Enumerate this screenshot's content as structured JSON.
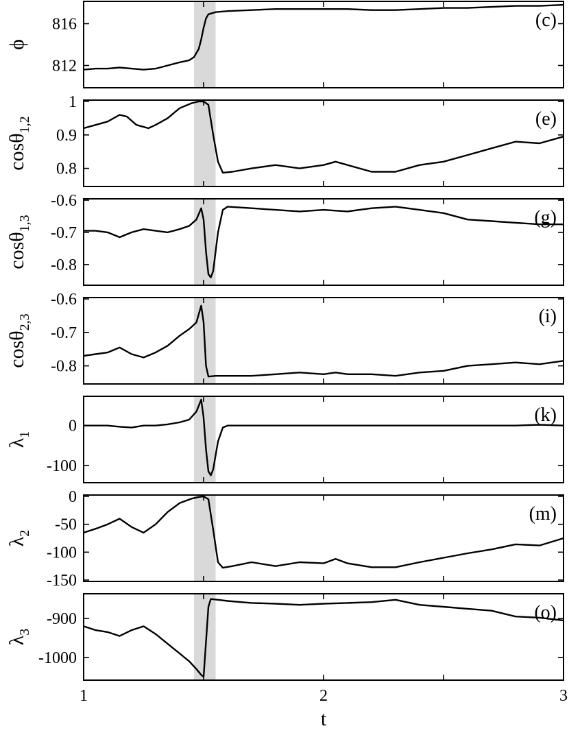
{
  "chart_data": {
    "type": "line",
    "xlabel": "t",
    "xlim": [
      1,
      3
    ],
    "xticks": [
      "1",
      "2",
      "3"
    ],
    "shaded_interval": [
      1.46,
      1.55
    ],
    "panels": [
      {
        "id": "c",
        "tag": "(c)",
        "ylabel": "ϕ",
        "ylabel_sub": "",
        "ylim": [
          810,
          818
        ],
        "yticks": [
          {
            "v": 812,
            "label": "812"
          },
          {
            "v": 816,
            "label": "816"
          }
        ],
        "x": [
          1.0,
          1.05,
          1.1,
          1.15,
          1.2,
          1.25,
          1.3,
          1.35,
          1.4,
          1.44,
          1.46,
          1.48,
          1.49,
          1.5,
          1.51,
          1.52,
          1.55,
          1.6,
          1.7,
          1.8,
          1.9,
          2.0,
          2.1,
          2.2,
          2.3,
          2.4,
          2.5,
          2.6,
          2.7,
          2.8,
          2.9,
          3.0
        ],
        "y": [
          811.6,
          811.7,
          811.7,
          811.8,
          811.7,
          811.6,
          811.7,
          812.0,
          812.3,
          812.5,
          812.8,
          813.6,
          814.5,
          815.6,
          816.5,
          816.9,
          817.1,
          817.2,
          817.3,
          817.4,
          817.4,
          817.4,
          817.4,
          817.3,
          817.3,
          817.4,
          817.5,
          817.5,
          817.6,
          817.7,
          817.7,
          817.8
        ]
      },
      {
        "id": "e",
        "tag": "(e)",
        "ylabel": "cosθ",
        "ylabel_sub": "1,2",
        "ylim": [
          0.75,
          1.0
        ],
        "yticks": [
          {
            "v": 0.8,
            "label": "0.8"
          },
          {
            "v": 0.9,
            "label": "0.9"
          },
          {
            "v": 1.0,
            "label": "1"
          }
        ],
        "x": [
          1.0,
          1.05,
          1.1,
          1.15,
          1.18,
          1.22,
          1.27,
          1.3,
          1.35,
          1.4,
          1.45,
          1.48,
          1.5,
          1.52,
          1.54,
          1.56,
          1.58,
          1.62,
          1.7,
          1.8,
          1.9,
          2.0,
          2.05,
          2.1,
          2.2,
          2.3,
          2.4,
          2.5,
          2.6,
          2.7,
          2.8,
          2.9,
          3.0
        ],
        "y": [
          0.92,
          0.93,
          0.94,
          0.96,
          0.955,
          0.93,
          0.92,
          0.93,
          0.95,
          0.98,
          0.995,
          1.0,
          1.0,
          0.99,
          0.9,
          0.82,
          0.787,
          0.79,
          0.8,
          0.81,
          0.8,
          0.81,
          0.82,
          0.81,
          0.79,
          0.79,
          0.81,
          0.82,
          0.84,
          0.86,
          0.88,
          0.875,
          0.895
        ]
      },
      {
        "id": "g",
        "tag": "(g)",
        "ylabel": "cosθ",
        "ylabel_sub": "1,3",
        "ylim": [
          -0.86,
          -0.6
        ],
        "yticks": [
          {
            "v": -0.8,
            "label": "-0.8"
          },
          {
            "v": -0.7,
            "label": "-0.7"
          },
          {
            "v": -0.6,
            "label": "-0.6"
          }
        ],
        "x": [
          1.0,
          1.05,
          1.1,
          1.15,
          1.2,
          1.25,
          1.3,
          1.35,
          1.4,
          1.44,
          1.47,
          1.49,
          1.5,
          1.51,
          1.52,
          1.53,
          1.54,
          1.56,
          1.58,
          1.6,
          1.7,
          1.8,
          1.9,
          2.0,
          2.1,
          2.2,
          2.3,
          2.4,
          2.5,
          2.6,
          2.7,
          2.8,
          2.9,
          3.0
        ],
        "y": [
          -0.695,
          -0.695,
          -0.7,
          -0.715,
          -0.7,
          -0.69,
          -0.695,
          -0.7,
          -0.69,
          -0.68,
          -0.66,
          -0.625,
          -0.66,
          -0.76,
          -0.83,
          -0.84,
          -0.82,
          -0.7,
          -0.63,
          -0.62,
          -0.625,
          -0.63,
          -0.635,
          -0.63,
          -0.635,
          -0.625,
          -0.62,
          -0.63,
          -0.64,
          -0.66,
          -0.665,
          -0.67,
          -0.675,
          -0.675
        ]
      },
      {
        "id": "i",
        "tag": "(i)",
        "ylabel": "cosθ",
        "ylabel_sub": "2,3",
        "ylim": [
          -0.85,
          -0.6
        ],
        "yticks": [
          {
            "v": -0.8,
            "label": "-0.8"
          },
          {
            "v": -0.7,
            "label": "-0.7"
          },
          {
            "v": -0.6,
            "label": "-0.6"
          }
        ],
        "x": [
          1.0,
          1.05,
          1.1,
          1.15,
          1.2,
          1.25,
          1.3,
          1.35,
          1.4,
          1.44,
          1.47,
          1.49,
          1.5,
          1.51,
          1.52,
          1.55,
          1.6,
          1.7,
          1.8,
          1.9,
          2.0,
          2.05,
          2.1,
          2.2,
          2.3,
          2.4,
          2.5,
          2.6,
          2.7,
          2.8,
          2.9,
          3.0
        ],
        "y": [
          -0.77,
          -0.765,
          -0.76,
          -0.745,
          -0.765,
          -0.775,
          -0.76,
          -0.74,
          -0.71,
          -0.69,
          -0.67,
          -0.62,
          -0.67,
          -0.8,
          -0.832,
          -0.83,
          -0.83,
          -0.83,
          -0.825,
          -0.82,
          -0.825,
          -0.82,
          -0.825,
          -0.825,
          -0.83,
          -0.82,
          -0.815,
          -0.8,
          -0.795,
          -0.79,
          -0.795,
          -0.785
        ]
      },
      {
        "id": "k",
        "tag": "(k)",
        "ylabel": "λ",
        "ylabel_sub": "1",
        "ylim": [
          -140,
          70
        ],
        "yticks": [
          {
            "v": -100,
            "label": "-100"
          },
          {
            "v": 0,
            "label": "0"
          }
        ],
        "x": [
          1.0,
          1.05,
          1.1,
          1.15,
          1.2,
          1.25,
          1.3,
          1.35,
          1.4,
          1.44,
          1.47,
          1.49,
          1.5,
          1.51,
          1.52,
          1.53,
          1.54,
          1.56,
          1.58,
          1.6,
          1.7,
          1.8,
          1.9,
          2.0,
          2.1,
          2.2,
          2.3,
          2.4,
          2.5,
          2.6,
          2.7,
          2.8,
          2.9,
          3.0
        ],
        "y": [
          0,
          0,
          0,
          -3,
          -5,
          0,
          0,
          3,
          8,
          15,
          35,
          65,
          20,
          -60,
          -115,
          -125,
          -110,
          -40,
          -5,
          0,
          0,
          0,
          0,
          0,
          0,
          0,
          0,
          0,
          0,
          0,
          0,
          0,
          2,
          0
        ]
      },
      {
        "id": "m",
        "tag": "(m)",
        "ylabel": "λ",
        "ylabel_sub": "2",
        "ylim": [
          -150,
          0
        ],
        "yticks": [
          {
            "v": -150,
            "label": "-150"
          },
          {
            "v": -100,
            "label": "-100"
          },
          {
            "v": -50,
            "label": "-50"
          },
          {
            "v": 0,
            "label": "0"
          }
        ],
        "x": [
          1.0,
          1.05,
          1.1,
          1.15,
          1.2,
          1.25,
          1.3,
          1.35,
          1.4,
          1.45,
          1.48,
          1.5,
          1.52,
          1.54,
          1.56,
          1.58,
          1.62,
          1.7,
          1.8,
          1.9,
          2.0,
          2.05,
          2.1,
          2.2,
          2.3,
          2.4,
          2.5,
          2.6,
          2.7,
          2.8,
          2.9,
          3.0
        ],
        "y": [
          -65,
          -58,
          -50,
          -40,
          -55,
          -65,
          -50,
          -28,
          -12,
          -4,
          -1,
          0,
          -5,
          -60,
          -118,
          -128,
          -125,
          -118,
          -125,
          -118,
          -120,
          -112,
          -120,
          -127,
          -127,
          -118,
          -110,
          -102,
          -95,
          -86,
          -88,
          -75
        ]
      },
      {
        "id": "o",
        "tag": "(o)",
        "ylabel": "λ",
        "ylabel_sub": "3",
        "ylim": [
          -1055,
          -840
        ],
        "yticks": [
          {
            "v": -1000,
            "label": "-1000"
          },
          {
            "v": -900,
            "label": "-900"
          }
        ],
        "x": [
          1.0,
          1.05,
          1.1,
          1.15,
          1.2,
          1.25,
          1.3,
          1.35,
          1.4,
          1.44,
          1.47,
          1.49,
          1.5,
          1.51,
          1.52,
          1.53,
          1.56,
          1.6,
          1.7,
          1.8,
          1.9,
          2.0,
          2.1,
          2.2,
          2.3,
          2.4,
          2.5,
          2.6,
          2.7,
          2.8,
          2.9,
          3.0
        ],
        "y": [
          -920,
          -930,
          -935,
          -945,
          -930,
          -920,
          -940,
          -965,
          -990,
          -1010,
          -1030,
          -1045,
          -1050,
          -960,
          -870,
          -850,
          -852,
          -855,
          -860,
          -862,
          -865,
          -862,
          -860,
          -858,
          -852,
          -865,
          -870,
          -875,
          -880,
          -895,
          -898,
          -905
        ]
      }
    ]
  }
}
